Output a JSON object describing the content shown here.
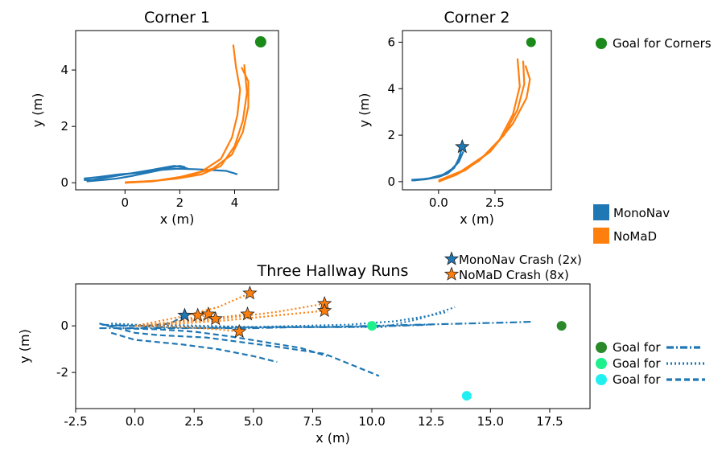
{
  "colors": {
    "mononav": "#1f77b4",
    "nomad": "#ff7f0e",
    "goal_corners": "#1a8a1a",
    "goal_hall_1": "#2a8a2a",
    "goal_hall_2": "#1ef08c",
    "goal_hall_3": "#22f0f0"
  },
  "chart_data": [
    {
      "id": "corner1",
      "type": "line",
      "title": "Corner 1",
      "xlabel": "x (m)",
      "ylabel": "y (m)",
      "xlim": [
        -1.8,
        5.6
      ],
      "ylim": [
        -0.25,
        5.4
      ],
      "xticks": [
        0,
        2,
        4
      ],
      "yticks": [
        0,
        2,
        4
      ],
      "goals": [
        {
          "x": 4.95,
          "y": 5.0,
          "color_key": "goal_corners",
          "size": 7
        }
      ],
      "crashes": [],
      "series": [
        {
          "group": "MonoNav",
          "style": "solid",
          "points": [
            [
              -1.5,
              0.1
            ],
            [
              -1.2,
              0.1
            ],
            [
              -0.6,
              0.2
            ],
            [
              0.0,
              0.3
            ],
            [
              0.5,
              0.38
            ],
            [
              1.0,
              0.46
            ],
            [
              1.5,
              0.55
            ],
            [
              1.8,
              0.6
            ],
            [
              2.1,
              0.55
            ],
            [
              2.3,
              0.5
            ]
          ]
        },
        {
          "group": "MonoNav",
          "style": "solid",
          "points": [
            [
              -1.4,
              0.05
            ],
            [
              -0.8,
              0.1
            ],
            [
              -0.3,
              0.15
            ],
            [
              0.3,
              0.25
            ],
            [
              0.8,
              0.35
            ],
            [
              1.3,
              0.45
            ],
            [
              1.7,
              0.55
            ],
            [
              2.0,
              0.6
            ],
            [
              2.2,
              0.55
            ]
          ]
        },
        {
          "group": "MonoNav",
          "style": "solid",
          "points": [
            [
              -1.5,
              0.15
            ],
            [
              -1.0,
              0.2
            ],
            [
              -0.2,
              0.3
            ],
            [
              0.5,
              0.35
            ],
            [
              1.2,
              0.45
            ],
            [
              1.9,
              0.5
            ],
            [
              2.6,
              0.48
            ],
            [
              3.2,
              0.45
            ],
            [
              3.7,
              0.42
            ],
            [
              4.1,
              0.3
            ]
          ]
        },
        {
          "group": "NoMaD",
          "style": "solid",
          "points": [
            [
              0.0,
              0.0
            ],
            [
              1.0,
              0.05
            ],
            [
              2.0,
              0.2
            ],
            [
              2.8,
              0.4
            ],
            [
              3.5,
              0.85
            ],
            [
              3.9,
              1.6
            ],
            [
              4.1,
              2.4
            ],
            [
              4.2,
              3.3
            ],
            [
              4.05,
              4.1
            ],
            [
              3.95,
              4.9
            ]
          ]
        },
        {
          "group": "NoMaD",
          "style": "solid",
          "points": [
            [
              0.0,
              0.02
            ],
            [
              1.0,
              0.06
            ],
            [
              1.9,
              0.15
            ],
            [
              2.8,
              0.3
            ],
            [
              3.5,
              0.6
            ],
            [
              4.0,
              1.3
            ],
            [
              4.3,
              2.2
            ],
            [
              4.45,
              3.2
            ],
            [
              4.35,
              4.2
            ]
          ]
        },
        {
          "group": "NoMaD",
          "style": "solid",
          "points": [
            [
              0.0,
              0.0
            ],
            [
              1.2,
              0.08
            ],
            [
              2.3,
              0.25
            ],
            [
              3.2,
              0.5
            ],
            [
              3.9,
              1.0
            ],
            [
              4.3,
              1.8
            ],
            [
              4.5,
              2.7
            ],
            [
              4.5,
              3.6
            ],
            [
              4.25,
              4.1
            ]
          ]
        }
      ]
    },
    {
      "id": "corner2",
      "type": "line",
      "title": "Corner 2",
      "xlabel": "x (m)",
      "ylabel": "y (m)",
      "xlim": [
        -1.6,
        5.0
      ],
      "ylim": [
        -0.35,
        6.5
      ],
      "xticks": [
        0.0,
        2.5
      ],
      "yticks": [
        0,
        2,
        4,
        6
      ],
      "goals": [
        {
          "x": 4.1,
          "y": 6.0,
          "color_key": "goal_corners",
          "size": 6
        }
      ],
      "crashes": [
        {
          "x": 1.05,
          "y": 1.5,
          "group": "MonoNav"
        }
      ],
      "series": [
        {
          "group": "MonoNav",
          "style": "solid",
          "points": [
            [
              -1.2,
              0.05
            ],
            [
              -0.6,
              0.1
            ],
            [
              0.0,
              0.2
            ],
            [
              0.4,
              0.35
            ],
            [
              0.7,
              0.6
            ],
            [
              0.9,
              1.0
            ],
            [
              1.05,
              1.5
            ]
          ]
        },
        {
          "group": "MonoNav",
          "style": "solid",
          "points": [
            [
              -1.2,
              0.08
            ],
            [
              -0.5,
              0.12
            ],
            [
              0.1,
              0.25
            ],
            [
              0.5,
              0.45
            ],
            [
              0.8,
              0.75
            ],
            [
              1.0,
              1.2
            ]
          ]
        },
        {
          "group": "MonoNav",
          "style": "solid",
          "points": [
            [
              -1.1,
              0.05
            ],
            [
              -0.4,
              0.15
            ],
            [
              0.2,
              0.3
            ],
            [
              0.6,
              0.55
            ],
            [
              0.9,
              0.85
            ],
            [
              1.1,
              1.3
            ]
          ]
        },
        {
          "group": "NoMaD",
          "style": "solid",
          "points": [
            [
              0.0,
              0.0
            ],
            [
              0.8,
              0.3
            ],
            [
              1.8,
              0.9
            ],
            [
              2.7,
              1.8
            ],
            [
              3.3,
              2.9
            ],
            [
              3.6,
              4.1
            ],
            [
              3.5,
              5.3
            ]
          ]
        },
        {
          "group": "NoMaD",
          "style": "solid",
          "points": [
            [
              0.0,
              0.05
            ],
            [
              1.0,
              0.45
            ],
            [
              2.0,
              1.1
            ],
            [
              2.9,
              2.0
            ],
            [
              3.5,
              3.1
            ],
            [
              3.8,
              4.2
            ],
            [
              3.75,
              5.2
            ]
          ]
        },
        {
          "group": "NoMaD",
          "style": "solid",
          "points": [
            [
              0.0,
              0.0
            ],
            [
              1.2,
              0.5
            ],
            [
              2.3,
              1.3
            ],
            [
              3.3,
              2.5
            ],
            [
              3.9,
              3.6
            ],
            [
              4.05,
              4.4
            ],
            [
              3.85,
              5.0
            ]
          ]
        }
      ]
    },
    {
      "id": "hallway",
      "type": "line",
      "title": "Three Hallway Runs",
      "xlabel": "x (m)",
      "ylabel": "y (m)",
      "xlim": [
        -2.5,
        19.2
      ],
      "ylim": [
        -3.55,
        1.8
      ],
      "xticks": [
        -2.5,
        0.0,
        2.5,
        5.0,
        7.5,
        10.0,
        12.5,
        15.0,
        17.5
      ],
      "yticks": [
        -2,
        0
      ],
      "goals": [
        {
          "x": 18.0,
          "y": 0.0,
          "color_key": "goal_hall_1",
          "size": 6
        },
        {
          "x": 10.0,
          "y": 0.0,
          "color_key": "goal_hall_2",
          "size": 6
        },
        {
          "x": 14.0,
          "y": -3.0,
          "color_key": "goal_hall_3",
          "size": 6
        }
      ],
      "crashes": [
        {
          "x": 2.1,
          "y": 0.45,
          "group": "MonoNav"
        },
        {
          "x": 2.65,
          "y": 0.45,
          "group": "NoMaD"
        },
        {
          "x": 3.1,
          "y": 0.5,
          "group": "NoMaD"
        },
        {
          "x": 3.4,
          "y": 0.3,
          "group": "NoMaD"
        },
        {
          "x": 4.4,
          "y": -0.25,
          "group": "NoMaD"
        },
        {
          "x": 4.75,
          "y": 0.5,
          "group": "NoMaD"
        },
        {
          "x": 4.85,
          "y": 1.4,
          "group": "NoMaD"
        },
        {
          "x": 8.0,
          "y": 0.95,
          "group": "NoMaD"
        },
        {
          "x": 8.0,
          "y": 0.65,
          "group": "NoMaD"
        }
      ],
      "series": [
        {
          "group": "MonoNav",
          "style": "dashdot",
          "points": [
            [
              -1.5,
              -0.1
            ],
            [
              0.0,
              -0.1
            ],
            [
              2.0,
              -0.1
            ],
            [
              4.0,
              -0.08
            ],
            [
              6.0,
              -0.05
            ],
            [
              8.0,
              -0.05
            ],
            [
              10.0,
              0.0
            ],
            [
              12.0,
              0.05
            ],
            [
              14.0,
              0.1
            ],
            [
              16.0,
              0.15
            ],
            [
              16.8,
              0.18
            ]
          ]
        },
        {
          "group": "MonoNav",
          "style": "dashdot",
          "points": [
            [
              -1.4,
              0.05
            ],
            [
              1.0,
              -0.05
            ],
            [
              3.0,
              -0.1
            ],
            [
              5.0,
              -0.1
            ],
            [
              7.0,
              -0.05
            ],
            [
              9.0,
              -0.05
            ],
            [
              11.0,
              0.0
            ],
            [
              12.5,
              0.05
            ]
          ]
        },
        {
          "group": "MonoNav",
          "style": "dotted",
          "points": [
            [
              -1.0,
              0.1
            ],
            [
              1.0,
              0.0
            ],
            [
              3.0,
              -0.05
            ],
            [
              5.0,
              -0.05
            ],
            [
              7.0,
              -0.05
            ],
            [
              9.0,
              -0.05
            ],
            [
              10.5,
              -0.05
            ],
            [
              12.0,
              0.3
            ],
            [
              13.5,
              0.8
            ]
          ]
        },
        {
          "group": "MonoNav",
          "style": "dotted",
          "points": [
            [
              -1.2,
              0.0
            ],
            [
              1.0,
              0.05
            ],
            [
              3.0,
              0.0
            ],
            [
              5.0,
              -0.05
            ],
            [
              7.0,
              0.0
            ],
            [
              9.0,
              0.05
            ],
            [
              11.0,
              0.2
            ],
            [
              12.5,
              0.45
            ],
            [
              13.2,
              0.6
            ]
          ]
        },
        {
          "group": "MonoNav",
          "style": "dashed",
          "points": [
            [
              -1.5,
              0.1
            ],
            [
              0.0,
              -0.3
            ],
            [
              1.0,
              -0.4
            ],
            [
              2.0,
              -0.45
            ],
            [
              3.0,
              -0.5
            ],
            [
              4.5,
              -0.7
            ],
            [
              6.0,
              -0.9
            ],
            [
              8.0,
              -1.2
            ],
            [
              10.3,
              -2.15
            ]
          ]
        },
        {
          "group": "MonoNav",
          "style": "dashed",
          "points": [
            [
              -1.0,
              -0.3
            ],
            [
              0.0,
              -0.6
            ],
            [
              1.0,
              -0.7
            ],
            [
              2.0,
              -0.8
            ],
            [
              3.5,
              -1.0
            ],
            [
              5.0,
              -1.3
            ],
            [
              6.0,
              -1.55
            ]
          ]
        },
        {
          "group": "MonoNav",
          "style": "dashed",
          "points": [
            [
              -0.8,
              -0.1
            ],
            [
              1.0,
              -0.15
            ],
            [
              2.5,
              -0.25
            ],
            [
              4.0,
              -0.45
            ],
            [
              5.5,
              -0.7
            ],
            [
              7.0,
              -0.95
            ],
            [
              8.1,
              -1.3
            ]
          ]
        },
        {
          "group": "MonoNav",
          "style": "dashed",
          "points": [
            [
              -1.0,
              0.0
            ],
            [
              0.5,
              0.0
            ],
            [
              1.5,
              0.1
            ],
            [
              2.1,
              0.45
            ]
          ]
        },
        {
          "group": "NoMaD",
          "style": "dotted",
          "points": [
            [
              0.0,
              0.0
            ],
            [
              1.0,
              0.1
            ],
            [
              2.0,
              0.2
            ],
            [
              2.65,
              0.45
            ]
          ]
        },
        {
          "group": "NoMaD",
          "style": "dotted",
          "points": [
            [
              0.0,
              0.0
            ],
            [
              1.5,
              0.15
            ],
            [
              2.5,
              0.3
            ],
            [
              3.1,
              0.5
            ]
          ]
        },
        {
          "group": "NoMaD",
          "style": "dotted",
          "points": [
            [
              0.0,
              0.0
            ],
            [
              1.5,
              0.1
            ],
            [
              2.8,
              0.2
            ],
            [
              3.4,
              0.3
            ]
          ]
        },
        {
          "group": "NoMaD",
          "style": "dotted",
          "points": [
            [
              0.0,
              0.0
            ],
            [
              2.0,
              -0.05
            ],
            [
              3.5,
              -0.15
            ],
            [
              4.4,
              -0.25
            ]
          ]
        },
        {
          "group": "NoMaD",
          "style": "dotted",
          "points": [
            [
              0.0,
              0.0
            ],
            [
              2.0,
              0.2
            ],
            [
              3.5,
              0.35
            ],
            [
              4.75,
              0.5
            ]
          ]
        },
        {
          "group": "NoMaD",
          "style": "dotted",
          "points": [
            [
              0.0,
              0.0
            ],
            [
              2.0,
              0.4
            ],
            [
              3.5,
              0.8
            ],
            [
              4.85,
              1.4
            ]
          ]
        },
        {
          "group": "NoMaD",
          "style": "dotted",
          "points": [
            [
              0.0,
              0.0
            ],
            [
              2.0,
              0.15
            ],
            [
              4.0,
              0.35
            ],
            [
              6.0,
              0.6
            ],
            [
              8.0,
              0.95
            ]
          ]
        },
        {
          "group": "NoMaD",
          "style": "dotted",
          "points": [
            [
              0.0,
              0.0
            ],
            [
              2.0,
              0.1
            ],
            [
              4.0,
              0.25
            ],
            [
              6.0,
              0.45
            ],
            [
              8.0,
              0.65
            ]
          ]
        }
      ]
    }
  ],
  "legends": {
    "corners_goal": "Goal for Corners",
    "methods": [
      "MonoNav",
      "NoMaD"
    ],
    "crashes": [
      "MonoNav Crash (2x)",
      "NoMaD Crash (8x)"
    ],
    "hallway_goals": [
      {
        "label": "Goal for",
        "color_key": "goal_hall_1",
        "line_style": "dashdot"
      },
      {
        "label": "Goal for",
        "color_key": "goal_hall_2",
        "line_style": "dotted"
      },
      {
        "label": "Goal for",
        "color_key": "goal_hall_3",
        "line_style": "dashed"
      }
    ]
  }
}
